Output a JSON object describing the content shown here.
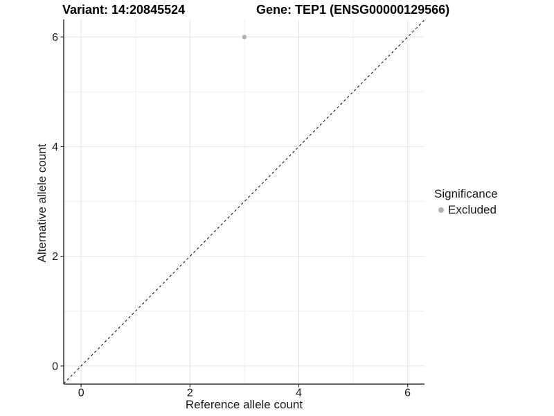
{
  "header": {
    "variant_title": "Variant: 14:20845524",
    "gene_title": "Gene: TEP1 (ENSG00000129566)"
  },
  "legend": {
    "title": "Significance",
    "items": [
      {
        "label": "Excluded",
        "color": "#b3b3b3"
      }
    ]
  },
  "chart_data": {
    "type": "scatter",
    "title": "Variant: 14:20845524  /  Gene: TEP1 (ENSG00000129566)",
    "xlabel": "Reference allele count",
    "ylabel": "Alternative allele count",
    "xlim": [
      -0.32,
      6.31
    ],
    "ylim": [
      -0.33,
      6.32
    ],
    "x_ticks": [
      0,
      2,
      4,
      6
    ],
    "y_ticks": [
      0,
      2,
      4,
      6
    ],
    "x_minor_ticks": [
      1,
      3,
      5
    ],
    "y_minor_ticks": [
      1,
      3,
      5
    ],
    "grid": true,
    "legend_position": "right",
    "series": [
      {
        "name": "Excluded",
        "color": "#b3b3b3",
        "points": [
          {
            "x": 3,
            "y": 6
          }
        ]
      }
    ],
    "abline": {
      "slope": 1,
      "intercept": 0,
      "style": "dashed",
      "color": "#000000"
    },
    "colors": {
      "grid_major": "#e4e4e4",
      "grid_minor": "#efefef",
      "axis_line": "#333333",
      "tick_text": "#1a1a1a"
    }
  }
}
